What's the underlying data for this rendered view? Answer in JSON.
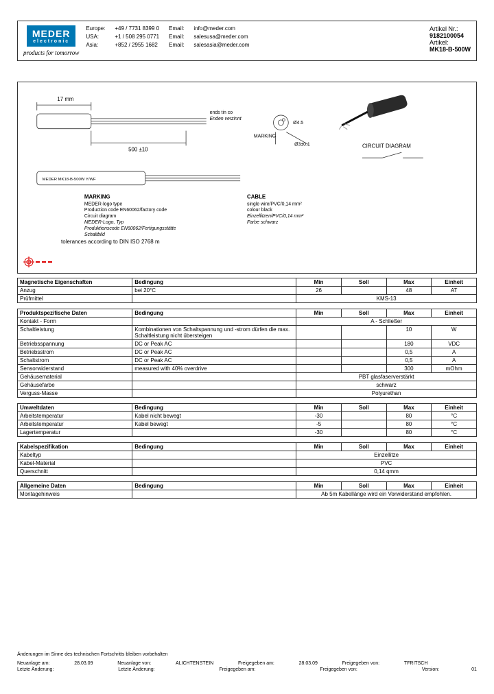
{
  "header": {
    "logo_main": "MEDER",
    "logo_sub": "electronic",
    "tagline": "products for tomorrow",
    "regions": [
      {
        "region": "Europe:",
        "phone": "+49 / 7731 8399 0",
        "email_label": "Email:",
        "email": "info@meder.com"
      },
      {
        "region": "USA:",
        "phone": "+1 / 508 295 0771",
        "email_label": "Email:",
        "email": "salesusa@meder.com"
      },
      {
        "region": "Asia:",
        "phone": "+852 / 2955 1682",
        "email_label": "Email:",
        "email": "salesasia@meder.com"
      }
    ],
    "article_nr_label": "Artikel Nr.:",
    "article_nr": "9182100054",
    "article_label": "Artikel:",
    "article": "MK18-B-500W"
  },
  "drawing": {
    "dim1": "17 mm",
    "endtext": "ends tin co\nEnden verzinnt",
    "dim2": "500 ±10",
    "marking_label": "MARKING",
    "circuit_label": "CIRCUIT DIAGRAM",
    "sensor_label": "MEDER MK18-B-500W Y/WF",
    "marking_title": "MARKING",
    "marking_body": "MEDER-logo type\nProduction code EN60062/factory code\nCircuit diagram\nMEDER-Logo, Typ\nProduktionscode EN60062/Fertigungsstätte\nSchaltbild",
    "cable_title": "CABLE",
    "cable_body": "single wire/PVC/0,14 mm²\ncolour black\nEinzellitzen/PVC/0,14 mm²\nFarbe schwarz",
    "tolerance": "tolerances according to DIN ISO 2768 m",
    "dia1": "Ø4.5",
    "dia2": "Ø3±0.1"
  },
  "tables": {
    "mag": {
      "title": "Magnetische Eigenschaften",
      "h_cond": "Bedingung",
      "h_min": "Min",
      "h_soll": "Soll",
      "h_max": "Max",
      "h_unit": "Einheit",
      "rows": [
        {
          "label": "Anzug",
          "cond": "bei 20°C",
          "min": "26",
          "soll": "",
          "max": "48",
          "unit": "AT"
        },
        {
          "label": "Prüfmittel",
          "span": "KMS-13"
        }
      ]
    },
    "prod": {
      "title": "Produktspezifische Daten",
      "h_cond": "Bedingung",
      "h_min": "Min",
      "h_soll": "Soll",
      "h_max": "Max",
      "h_unit": "Einheit",
      "rows": [
        {
          "label": "Kontakt - Form",
          "span": "A - Schließer"
        },
        {
          "label": "Schaltleistung",
          "cond": "Kombinationen von Schaltspannung und -strom dürfen die max. Schaltleistung nicht übersteigen",
          "min": "",
          "soll": "",
          "max": "10",
          "unit": "W"
        },
        {
          "label": "Betriebsspannung",
          "cond": "DC or Peak AC",
          "min": "",
          "soll": "",
          "max": "180",
          "unit": "VDC"
        },
        {
          "label": "Betriebsstrom",
          "cond": "DC or Peak AC",
          "min": "",
          "soll": "",
          "max": "0,5",
          "unit": "A"
        },
        {
          "label": "Schaltstrom",
          "cond": "DC or Peak AC",
          "min": "",
          "soll": "",
          "max": "0,5",
          "unit": "A"
        },
        {
          "label": "Sensorwiderstand",
          "cond": "measured with 40% overdrive",
          "min": "",
          "soll": "",
          "max": "300",
          "unit": "mOhm"
        },
        {
          "label": "Gehäusematerial",
          "span": "PBT glasfaserverstärkt"
        },
        {
          "label": "Gehäusefarbe",
          "span": "schwarz"
        },
        {
          "label": "Verguss-Masse",
          "span": "Polyurethan"
        }
      ]
    },
    "env": {
      "title": "Umweltdaten",
      "h_cond": "Bedingung",
      "h_min": "Min",
      "h_soll": "Soll",
      "h_max": "Max",
      "h_unit": "Einheit",
      "rows": [
        {
          "label": "Arbeitstemperatur",
          "cond": "Kabel nicht bewegt",
          "min": "-30",
          "soll": "",
          "max": "80",
          "unit": "°C"
        },
        {
          "label": "Arbeitstemperatur",
          "cond": "Kabel bewegt",
          "min": "-5",
          "soll": "",
          "max": "80",
          "unit": "°C"
        },
        {
          "label": "Lagertemperatur",
          "cond": "",
          "min": "-30",
          "soll": "",
          "max": "80",
          "unit": "°C"
        }
      ]
    },
    "cable": {
      "title": "Kabelspezifikation",
      "h_cond": "Bedingung",
      "h_min": "Min",
      "h_soll": "Soll",
      "h_max": "Max",
      "h_unit": "Einheit",
      "rows": [
        {
          "label": "Kabeltyp",
          "span": "Einzellitze"
        },
        {
          "label": "Kabel-Material",
          "span": "PVC"
        },
        {
          "label": "Querschnitt",
          "span": "0,14 qmm"
        }
      ]
    },
    "gen": {
      "title": "Allgemeine Daten",
      "h_cond": "Bedingung",
      "h_min": "Min",
      "h_soll": "Soll",
      "h_max": "Max",
      "h_unit": "Einheit",
      "rows": [
        {
          "label": "Montagehinweis",
          "span": "Ab 5m Kabellänge wird ein Vorwiderstand empfohlen."
        }
      ]
    }
  },
  "footer": {
    "note": "Änderungen im Sinne des technischen Fortschritts bleiben vorbehalten",
    "row1": {
      "a": "Neuanlage am:",
      "b": "28.03.09",
      "c": "Neuanlage von:",
      "d": "ALICHTENSTEIN",
      "e": "Freigegeben am:",
      "f": "28.03.09",
      "g": "Freigegeben von:",
      "h": "TFRITSCH"
    },
    "row2": {
      "a": "Letzte Änderung:",
      "b": "",
      "c": "Letzte Änderung:",
      "d": "",
      "e": "Freigegeben am:",
      "f": "",
      "g": "Freigegeben von:",
      "h": "",
      "v": "Version:",
      "vn": "01"
    }
  }
}
